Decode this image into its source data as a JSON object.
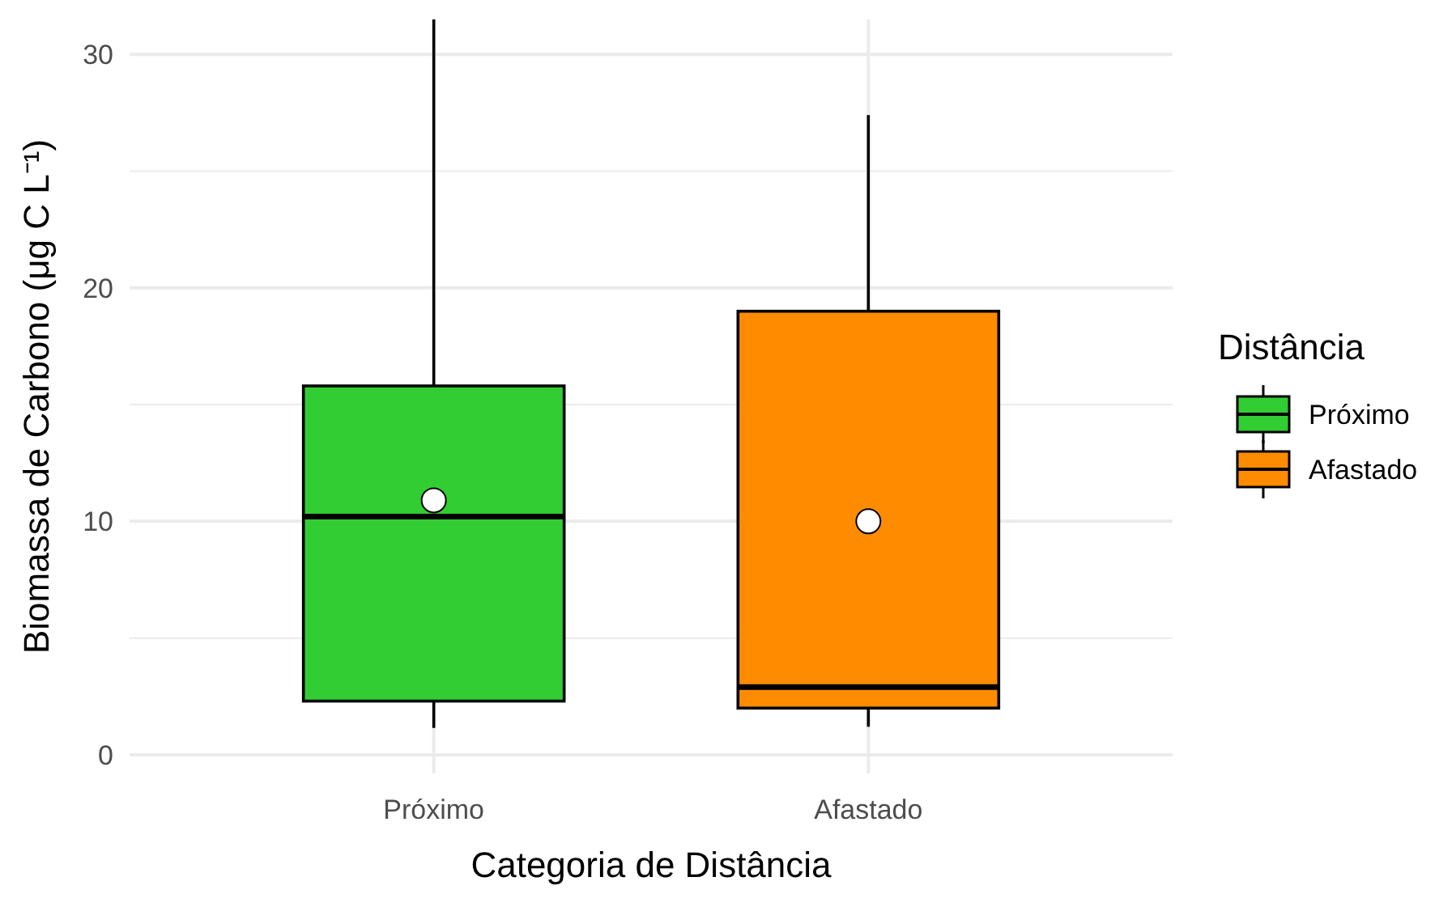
{
  "chart_data": {
    "type": "box",
    "xlabel": "Categoria de Distância",
    "ylabel": "Biomassa de Carbono (μg C L⁻¹)",
    "legend_title": "Distância",
    "categories": [
      "Próximo",
      "Afastado"
    ],
    "series": [
      {
        "name": "Próximo",
        "color": "#32cd32",
        "boxes": [
          {
            "low": 1.15,
            "q1": 2.3,
            "median": 10.2,
            "q3": 15.8,
            "high": 31.5,
            "mean": 10.9
          },
          null
        ]
      },
      {
        "name": "Afastado",
        "color": "#ff8c00",
        "boxes": [
          null,
          {
            "low": 1.2,
            "q1": 2.0,
            "median": 2.9,
            "q3": 19.0,
            "high": 27.4,
            "mean": 10.0
          }
        ]
      }
    ],
    "ylim": [
      -0.8,
      31.5
    ],
    "yticks": [
      0,
      {
        "value": 5,
        "label": null
      },
      10,
      {
        "value": 15,
        "label": null
      },
      20,
      {
        "value": 25,
        "label": null
      },
      30
    ],
    "grid": true,
    "legend": "right"
  }
}
